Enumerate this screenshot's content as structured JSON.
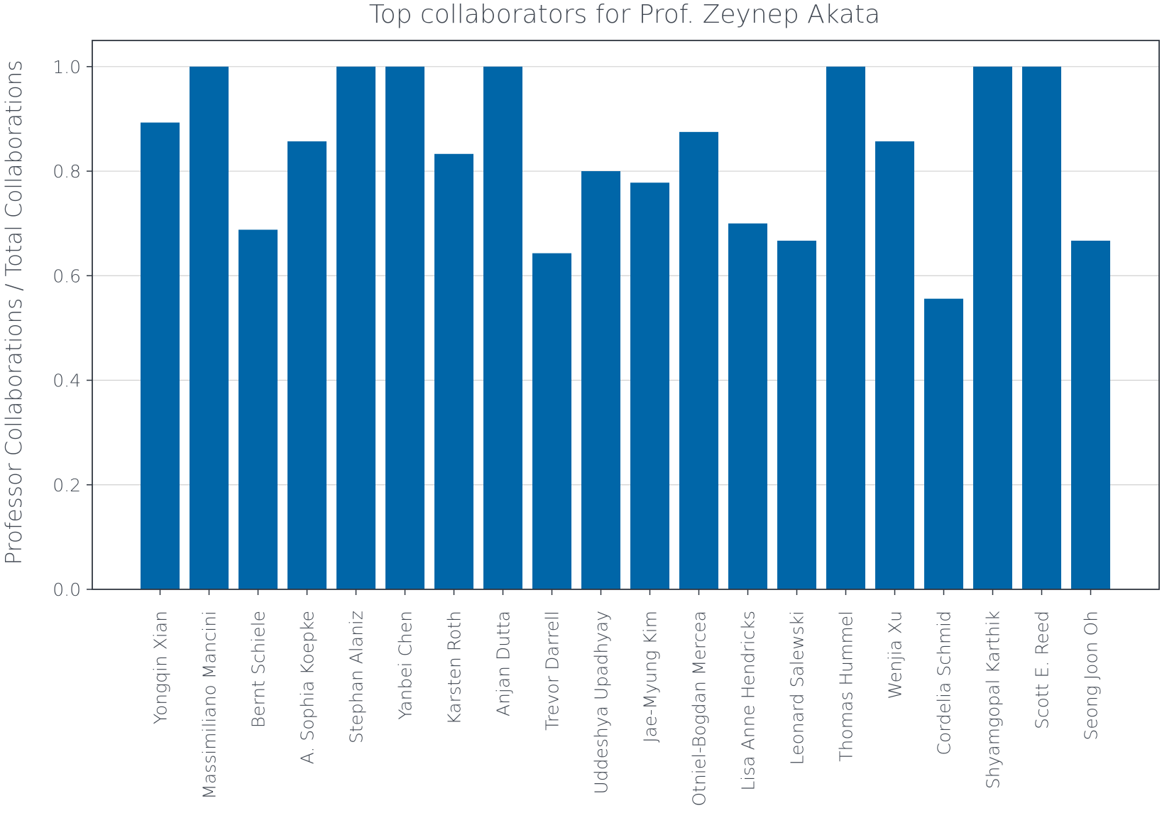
{
  "chart_data": {
    "type": "bar",
    "title": "Top collaborators for Prof. Zeynep Akata",
    "xlabel": "",
    "ylabel": "Professor Collaborations / Total Collaborations",
    "ylim": [
      0,
      1.05
    ],
    "yticks": [
      "0.0",
      "0.2",
      "0.4",
      "0.6",
      "0.8",
      "1.0"
    ],
    "grid": "horizontal",
    "bar_color": "#0066a8",
    "categories": [
      "Yongqin Xian",
      "Massimiliano Mancini",
      "Bernt Schiele",
      "A. Sophia Koepke",
      "Stephan Alaniz",
      "Yanbei Chen",
      "Karsten Roth",
      "Anjan Dutta",
      "Trevor Darrell",
      "Uddeshya Upadhyay",
      "Jae-Myung Kim",
      "Otniel-Bogdan Mercea",
      "Lisa Anne Hendricks",
      "Leonard Salewski",
      "Thomas Hummel",
      "Wenjia Xu",
      "Cordelia Schmid",
      "Shyamgopal Karthik",
      "Scott E. Reed",
      "Seong Joon Oh"
    ],
    "values": [
      0.893,
      1.0,
      0.688,
      0.857,
      1.0,
      1.0,
      0.833,
      1.0,
      0.643,
      0.8,
      0.778,
      0.875,
      0.7,
      0.667,
      1.0,
      0.857,
      0.556,
      1.0,
      1.0,
      0.667
    ]
  }
}
